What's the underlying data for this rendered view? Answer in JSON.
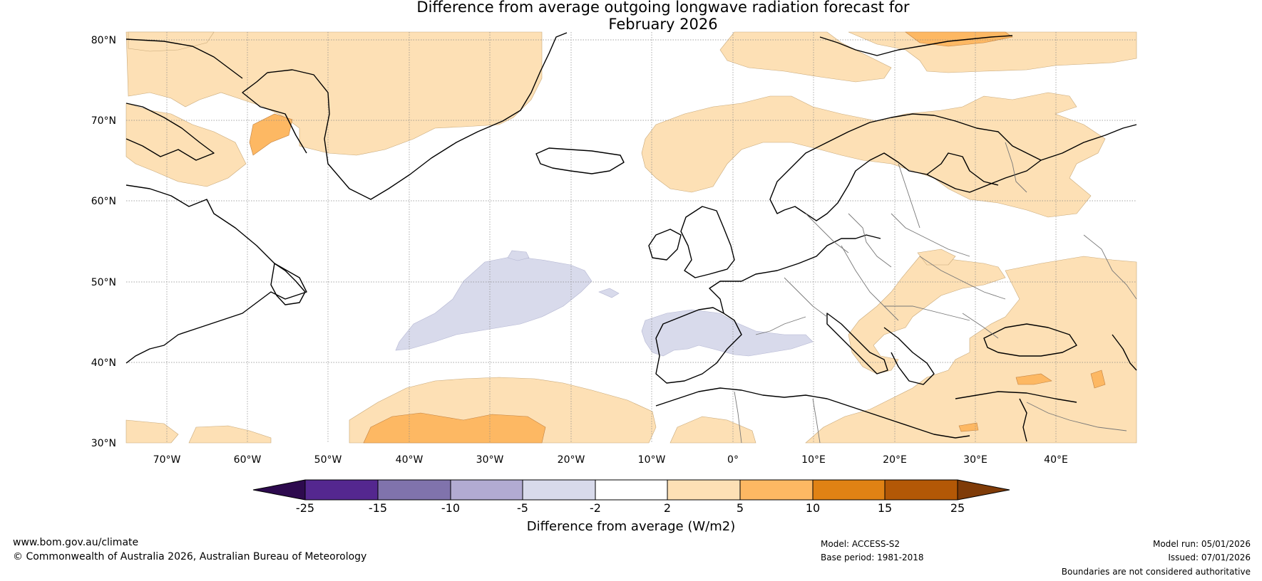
{
  "title": {
    "line1": "Difference from average outgoing longwave radiation forecast for",
    "line2": "February 2026"
  },
  "map": {
    "lat_labels": [
      "80°N",
      "70°N",
      "60°N",
      "50°N",
      "40°N",
      "30°N"
    ],
    "lon_labels": [
      "70°W",
      "60°W",
      "50°W",
      "40°W",
      "30°W",
      "20°W",
      "10°W",
      "0°",
      "10°E",
      "20°E",
      "30°E",
      "40°E"
    ]
  },
  "colorbar": {
    "ticks": [
      "-25",
      "-15",
      "-10",
      "-5",
      "-2",
      "2",
      "5",
      "10",
      "15",
      "25"
    ],
    "label": "Difference from average (W/m2)",
    "colors": [
      "#2d0a4e",
      "#54278f",
      "#8073ac",
      "#b2abd2",
      "#d8daeb",
      "#ffffff",
      "#fde0b5",
      "#fdb863",
      "#e08214",
      "#b35806",
      "#7f3b08"
    ]
  },
  "footer": {
    "website": "www.bom.gov.au/climate",
    "copyright": "© Commonwealth of Australia 2026, Australian Bureau of Meteorology",
    "model": "Model: ACCESS-S2",
    "base_period": "Base period: 1981-2018",
    "model_run": "Model run: 05/01/2026",
    "issued": "Issued: 07/01/2026",
    "disclaimer": "Boundaries are not considered authoritative"
  }
}
